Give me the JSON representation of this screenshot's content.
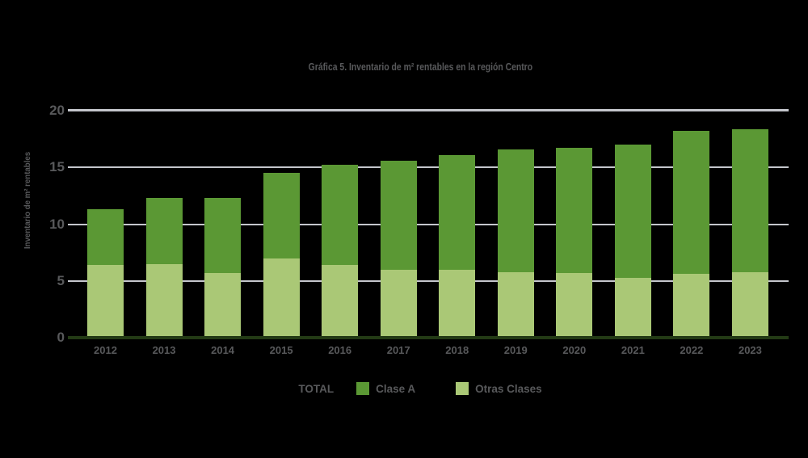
{
  "chart_data": {
    "type": "bar",
    "stacked": true,
    "title": "Gráfica 5. Inventario de m² rentables en la región Centro",
    "xlabel": "",
    "ylabel": "Inventario de m² rentables",
    "categories": [
      "2012",
      "2013",
      "2014",
      "2015",
      "2016",
      "2017",
      "2018",
      "2019",
      "2020",
      "2021",
      "2022",
      "2023"
    ],
    "series": [
      {
        "name": "Clase A",
        "color": "#5b9834",
        "values": [
          4.9,
          5.8,
          6.6,
          7.5,
          8.8,
          9.6,
          10.1,
          10.8,
          11.0,
          11.7,
          12.6,
          12.6
        ]
      },
      {
        "name": "Otras Clases",
        "color": "#aac876",
        "values": [
          6.4,
          6.5,
          5.7,
          7.0,
          6.4,
          6.0,
          6.0,
          5.8,
          5.7,
          5.3,
          5.6,
          5.8
        ]
      }
    ],
    "totals": [
      11.3,
      12.3,
      12.3,
      14.5,
      15.2,
      15.6,
      16.1,
      16.6,
      16.7,
      17.0,
      18.2,
      18.4
    ],
    "stack_bottom_to_top": [
      "Otras Clases",
      "Clase A"
    ],
    "ylim": [
      0,
      20
    ],
    "yticks": [
      0,
      5,
      10,
      15,
      20
    ],
    "grid": "horizontal",
    "legend_position": "bottom"
  },
  "legend": {
    "total_label": "TOTAL",
    "items": [
      {
        "label": "Clase A",
        "color": "#5b9834"
      },
      {
        "label": "Otras Clases",
        "color": "#aac876"
      }
    ]
  },
  "colors": {
    "background": "#000000",
    "text": "#58595b",
    "gridline": "#c4c6cc",
    "axis_line": "#233a15",
    "clase_a": "#5b9834",
    "otras_clases": "#aac876"
  }
}
